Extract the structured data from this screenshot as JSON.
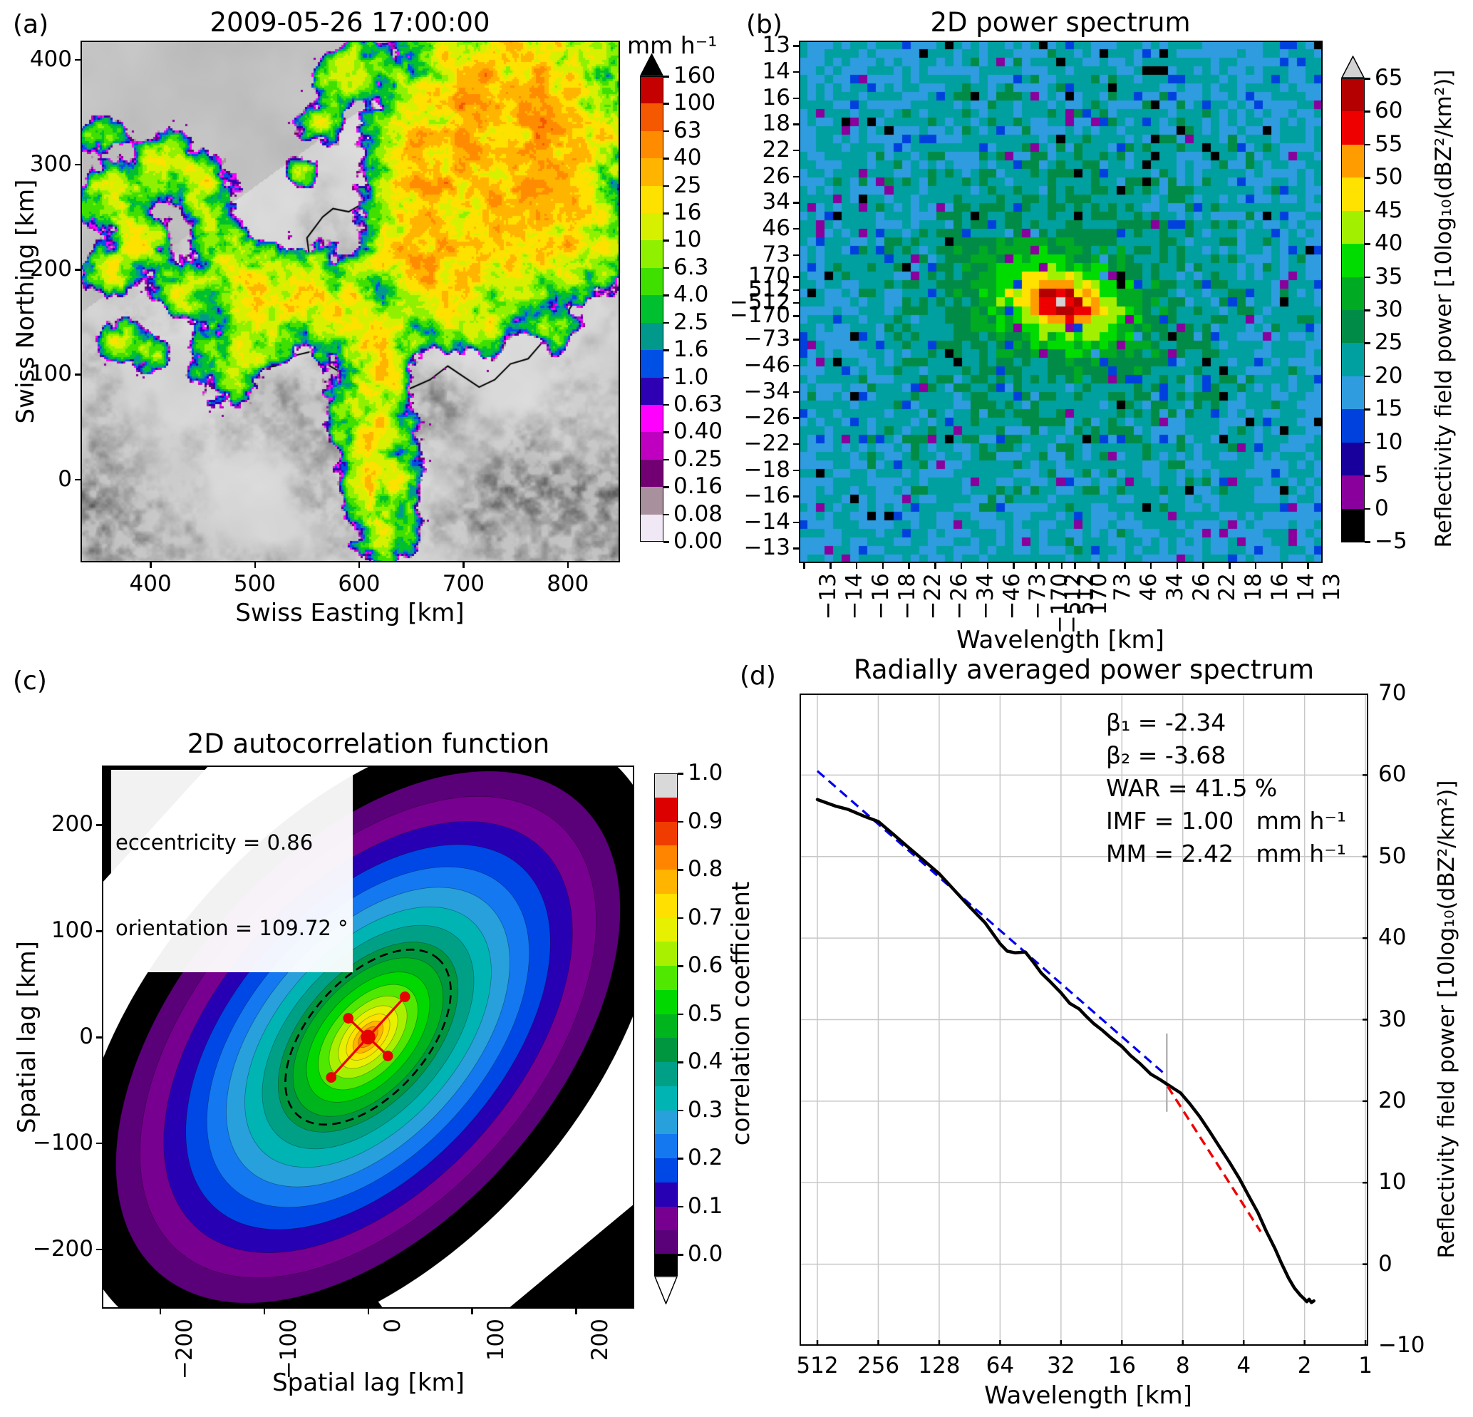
{
  "panels": {
    "a": {
      "tag": "(a)",
      "title": "2009-05-26 17:00:00",
      "xlabel": "Swiss Easting [km]",
      "ylabel": "Swiss Northing [km]",
      "xticks": [
        "400",
        "500",
        "600",
        "700",
        "800"
      ],
      "yticks": [
        "400",
        "300",
        "200",
        "100",
        "0"
      ],
      "colorbar": {
        "title": "mm h⁻¹",
        "tick_labels": [
          "160",
          "100",
          "63",
          "40",
          "25",
          "16",
          "10",
          "6.3",
          "4.0",
          "2.5",
          "1.6",
          "1.0",
          "0.63",
          "0.40",
          "0.25",
          "0.16",
          "0.08",
          "0.00"
        ],
        "segment_colors_top_down": [
          "#c40000",
          "#f45800",
          "#ff8c00",
          "#ffb400",
          "#ffe100",
          "#d7f000",
          "#8ff000",
          "#3fe000",
          "#00c030",
          "#00998c",
          "#0050e6",
          "#2d00b4",
          "#ff00ff",
          "#c000c0",
          "#730073",
          "#a8909c",
          "#f0e8f4"
        ],
        "over_arrow_color": "#000000"
      }
    },
    "b": {
      "tag": "(b)",
      "title": "2D power spectrum",
      "xlabel": "Wavelength [km]",
      "xticks": [
        "−13",
        "−14",
        "−16",
        "−18",
        "−22",
        "−26",
        "−34",
        "−46",
        "−73",
        "−170",
        "−512",
        "512",
        "170",
        "73",
        "46",
        "34",
        "26",
        "22",
        "18",
        "16",
        "14",
        "13"
      ],
      "yticks": [
        "13",
        "14",
        "16",
        "18",
        "22",
        "26",
        "34",
        "46",
        "73",
        "170",
        "512",
        "−512",
        "−170",
        "−73",
        "−46",
        "−34",
        "−26",
        "−22",
        "−18",
        "−16",
        "−14",
        "−13"
      ],
      "colorbar": {
        "label": "Reflectivity field power [10log₁₀(dBZ²/km²)]",
        "tick_labels": [
          "65",
          "60",
          "55",
          "50",
          "45",
          "40",
          "35",
          "30",
          "25",
          "20",
          "15",
          "10",
          "5",
          "0",
          "−5"
        ],
        "segment_colors_top_down": [
          "#b40000",
          "#ee0000",
          "#ff9c00",
          "#ffe200",
          "#a2f000",
          "#00dc00",
          "#00aa22",
          "#008c46",
          "#00a0a0",
          "#2f9ce0",
          "#0040dd",
          "#18009c",
          "#8a009c",
          "#000000"
        ],
        "over_arrow_color": "#d2d2d2"
      }
    },
    "c": {
      "tag": "(c)",
      "title": "2D autocorrelation function",
      "xlabel": "Spatial lag [km]",
      "ylabel": "Spatial lag [km]",
      "xticks": [
        "−200",
        "−100",
        "0",
        "100",
        "200"
      ],
      "yticks": [
        "200",
        "100",
        "0",
        "−100",
        "−200"
      ],
      "annotations": {
        "eccentricity": "eccentricity = 0.86",
        "orientation": "orientation = 109.72 °"
      },
      "colorbar": {
        "label": "correlation coefficient",
        "tick_labels": [
          "1.0",
          "0.9",
          "0.8",
          "0.7",
          "0.6",
          "0.5",
          "0.4",
          "0.3",
          "0.2",
          "0.1",
          "0.0"
        ],
        "segment_colors_top_down": [
          "#d9d9d9",
          "#dc0000",
          "#f03c00",
          "#ff8400",
          "#ffb400",
          "#ffe000",
          "#e6f000",
          "#a8f000",
          "#50e800",
          "#00d800",
          "#00b41e",
          "#009640",
          "#00a087",
          "#00b4b4",
          "#28a0dc",
          "#1478f0",
          "#0048e6",
          "#2800b4",
          "#780090",
          "#5a0078"
        ],
        "under_color": "#000000"
      }
    },
    "d": {
      "tag": "(d)",
      "title": "Radially averaged power spectrum",
      "xlabel": "Wavelength [km]",
      "ylabel": "Reflectivity field power [10log₁₀(dBZ²/km²)]",
      "xticks": [
        "512",
        "256",
        "128",
        "64",
        "32",
        "16",
        "8",
        "4",
        "2",
        "1"
      ],
      "yticks": [
        "70",
        "60",
        "50",
        "40",
        "30",
        "20",
        "10",
        "0",
        "−10"
      ],
      "stats": {
        "beta1": "β₁ = -2.34",
        "beta2": "β₂ = -3.68",
        "war": "WAR = 41.5 %",
        "imf": "IMF = 1.00   mm h⁻¹",
        "mm": "MM = 2.42   mm h⁻¹"
      },
      "colors": {
        "beta1_text": "#0000ee",
        "beta2_text": "#ee0000",
        "curve": "#000000",
        "fit1": "#0000ee",
        "fit2": "#ee0000",
        "break_line": "#b4b4b4",
        "grid": "#c8c8c8"
      }
    }
  },
  "chart_data": [
    {
      "type": "heatmap",
      "panel": "a",
      "title": "2009-05-26 17:00:00",
      "xlabel": "Swiss Easting [km]",
      "ylabel": "Swiss Northing [km]",
      "x_range": [
        333,
        850
      ],
      "y_range": [
        -79,
        418
      ],
      "xticks": [
        400,
        500,
        600,
        700,
        800
      ],
      "yticks": [
        400,
        300,
        200,
        100,
        0
      ],
      "colorbar_label": "mm h⁻¹",
      "levels_mm_per_h": [
        0.0,
        0.08,
        0.16,
        0.25,
        0.4,
        0.63,
        1.0,
        1.6,
        2.5,
        4.0,
        6.3,
        10,
        16,
        25,
        40,
        63,
        100,
        160
      ],
      "description": "Radar rain-rate composite over Swiss terrain hillshade; broad convective rain area over eastern half with embedded 16-40 mm/h cells, narrow north-south band in the centre and scattered cells to the west, magenta/purple low-intensity fringes"
    },
    {
      "type": "heatmap",
      "panel": "b",
      "title": "2D power spectrum",
      "xlabel": "Wavelength [km]",
      "tick_wavelengths_km": [
        13,
        14,
        16,
        18,
        22,
        26,
        34,
        46,
        73,
        170,
        512,
        -512,
        -170,
        -73,
        -46,
        -34,
        -26,
        -22,
        -18,
        -16,
        -14,
        -13
      ],
      "colorbar_label": "Reflectivity field power [10log₁₀(dBZ²/km²)]",
      "colorbar_ticks": [
        -5,
        0,
        5,
        10,
        15,
        20,
        25,
        30,
        35,
        40,
        45,
        50,
        55,
        60,
        65
      ],
      "description": "Noisy 2D FFT power spectrum: teal/blue speckle at short wavelengths, green mid-field, yellow-orange-red peak at the centre (DC), centre cell exceeds 65 (grey over-colour); scattered black/magenta/navy outlier pixels"
    },
    {
      "type": "contour",
      "panel": "c",
      "title": "2D autocorrelation function",
      "xlabel": "Spatial lag [km]",
      "ylabel": "Spatial lag [km]",
      "x_range": [
        -256,
        256
      ],
      "y_range": [
        -256,
        256
      ],
      "levels": [
        0.0,
        0.05,
        0.1,
        0.15,
        0.2,
        0.25,
        0.3,
        0.35,
        0.4,
        0.45,
        0.5,
        0.55,
        0.6,
        0.65,
        0.7,
        0.75,
        0.8,
        0.85,
        0.9,
        0.95,
        1.0
      ],
      "colorbar_label": "correlation coefficient",
      "eccentricity": 0.86,
      "orientation_deg": 109.72,
      "description": "Elongated anisotropic correlation ellipse oriented SW-NE, red core at zero lag, dashed contour near 0.5, red cross marking fitted ellipse axes, black below-zero shell, white outside"
    },
    {
      "type": "line",
      "panel": "d",
      "title": "Radially averaged power spectrum",
      "xlabel": "Wavelength [km]",
      "ylabel": "Reflectivity field power [10log₁₀(dBZ²/km²)]",
      "x_log2": true,
      "xticks": [
        512,
        256,
        128,
        64,
        32,
        16,
        8,
        4,
        2,
        1
      ],
      "ylim": [
        -10,
        70
      ],
      "yticks": [
        70,
        60,
        50,
        40,
        30,
        20,
        10,
        0,
        -10
      ],
      "series": [
        {
          "name": "radially averaged power spectrum",
          "color": "#000000",
          "style": "solid",
          "points": [
            [
              512,
              57.0
            ],
            [
              418,
              56.2
            ],
            [
              362,
              55.8
            ],
            [
              304,
              55.0
            ],
            [
              256,
              54.3
            ],
            [
              215,
              52.7
            ],
            [
              181,
              51.1
            ],
            [
              152,
              49.5
            ],
            [
              128,
              47.9
            ],
            [
              108,
              45.9
            ],
            [
              91,
              43.9
            ],
            [
              76,
              41.9
            ],
            [
              64,
              39.3
            ],
            [
              59,
              38.4
            ],
            [
              54,
              38.2
            ],
            [
              48,
              38.3
            ],
            [
              44,
              37.1
            ],
            [
              40,
              35.7
            ],
            [
              36,
              34.6
            ],
            [
              32,
              33.3
            ],
            [
              29,
              32.0
            ],
            [
              26,
              31.3
            ],
            [
              24,
              30.4
            ],
            [
              22,
              29.5
            ],
            [
              20,
              28.7
            ],
            [
              18,
              27.7
            ],
            [
              16,
              26.7
            ],
            [
              14.5,
              25.6
            ],
            [
              13,
              24.6
            ],
            [
              11.5,
              23.3
            ],
            [
              10.3,
              22.6
            ],
            [
              9.2,
              21.8
            ],
            [
              8.2,
              21.0
            ],
            [
              7.4,
              19.7
            ],
            [
              6.6,
              18.1
            ],
            [
              5.9,
              16.3
            ],
            [
              5.3,
              14.5
            ],
            [
              4.7,
              12.5
            ],
            [
              4.2,
              10.5
            ],
            [
              3.8,
              8.5
            ],
            [
              3.4,
              6.3
            ],
            [
              3.1,
              4.1
            ],
            [
              2.8,
              1.9
            ],
            [
              2.6,
              0.1
            ],
            [
              2.4,
              -1.7
            ],
            [
              2.25,
              -2.9
            ],
            [
              2.1,
              -3.8
            ],
            [
              2.0,
              -4.3
            ],
            [
              1.95,
              -4.6
            ],
            [
              1.9,
              -4.3
            ],
            [
              1.85,
              -4.7
            ],
            [
              1.8,
              -4.5
            ]
          ]
        },
        {
          "name": "beta1 fit (large scales)",
          "color": "#0000ee",
          "style": "dashed",
          "points": [
            [
              512,
              60.5
            ],
            [
              9.8,
              23.3
            ]
          ]
        },
        {
          "name": "beta2 fit (small scales)",
          "color": "#ee0000",
          "style": "dashed",
          "points": [
            [
              9.5,
              21.8
            ],
            [
              3.3,
              4.0
            ]
          ]
        }
      ],
      "scale_break": {
        "wavelength_km": 9.6,
        "y_range": [
          18.7,
          28.3
        ]
      },
      "stats": {
        "beta1": -2.34,
        "beta2": -3.68,
        "war_percent": 41.5,
        "imf_mm_per_h": 1.0,
        "mm_mm_per_h": 2.42
      }
    }
  ]
}
